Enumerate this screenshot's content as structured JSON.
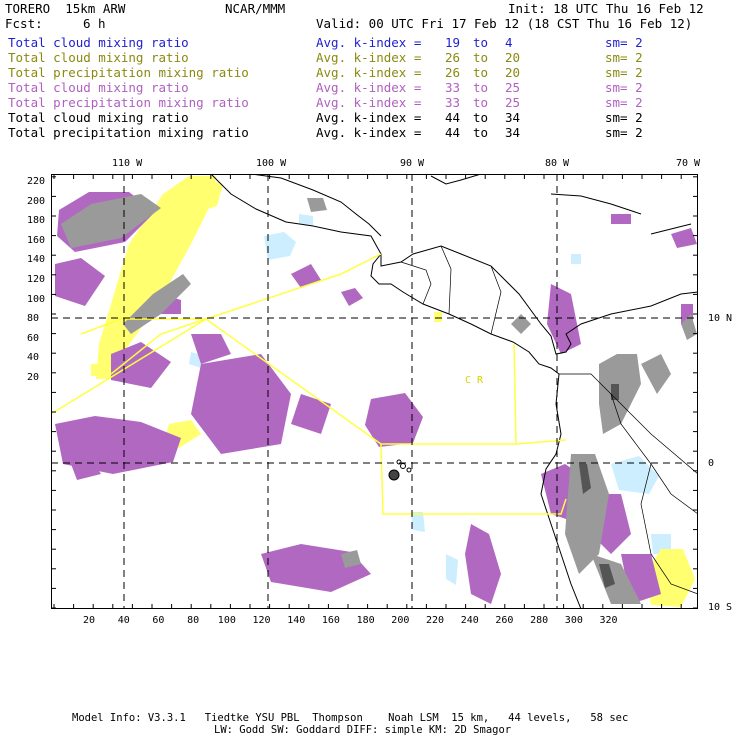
{
  "header": {
    "model": "TORERO  15km ARW",
    "org": "NCAR/MMM",
    "init": "Init: 18 UTC Thu 16 Feb 12",
    "fcst_label": "Fcst:",
    "fcst_value": "6 h",
    "valid": "Valid: 00 UTC Fri 17 Feb 12 (18 CST Thu 16 Feb 12)"
  },
  "legend": [
    {
      "field": "Total cloud mixing ratio",
      "avg": "Avg. k-index =",
      "k1": "19",
      "to": "to",
      "k2": "4",
      "sm": "sm= 2",
      "color": "#1f1fd0"
    },
    {
      "field": "Total cloud mixing ratio",
      "avg": "Avg. k-index =",
      "k1": "26",
      "to": "to",
      "k2": "20",
      "sm": "sm= 2",
      "color": "#8a8a10"
    },
    {
      "field": "Total precipitation mixing ratio",
      "avg": "Avg. k-index =",
      "k1": "26",
      "to": "to",
      "k2": "20",
      "sm": "sm= 2",
      "color": "#8a8a10"
    },
    {
      "field": "Total cloud mixing ratio",
      "avg": "Avg. k-index =",
      "k1": "33",
      "to": "to",
      "k2": "25",
      "sm": "sm= 2",
      "color": "#b060c0"
    },
    {
      "field": "Total precipitation mixing ratio",
      "avg": "Avg. k-index =",
      "k1": "33",
      "to": "to",
      "k2": "25",
      "sm": "sm= 2",
      "color": "#b060c0"
    },
    {
      "field": "Total cloud mixing ratio",
      "avg": "Avg. k-index =",
      "k1": "44",
      "to": "to",
      "k2": "34",
      "sm": "sm= 2",
      "color": "#000000"
    },
    {
      "field": "Total precipitation mixing ratio",
      "avg": "Avg. k-index =",
      "k1": "44",
      "to": "to",
      "k2": "34",
      "sm": "sm= 2",
      "color": "#000000"
    }
  ],
  "map": {
    "top_lon_labels": [
      "110 W",
      "100 W",
      "90 W",
      "80 W",
      "70 W"
    ],
    "right_lat_labels": [
      "10 N",
      "0",
      "10 S"
    ],
    "left_ticks": [
      "220",
      "200",
      "180",
      "160",
      "140",
      "120",
      "100",
      "80",
      "60",
      "40",
      "20"
    ],
    "bottom_ticks": [
      "20",
      "40",
      "60",
      "80",
      "100",
      "120",
      "140",
      "160",
      "180",
      "200",
      "220",
      "240",
      "260",
      "280",
      "300",
      "320"
    ],
    "region_label": "C R",
    "colors": {
      "purple": "#b068c0",
      "yellow": "#ffff70",
      "light_blue": "#cceeff",
      "gray": "#9a9a9a",
      "dark_gray": "#555555",
      "coast": "#000000",
      "boundary": "#ffff40"
    }
  },
  "footer": {
    "line1": "Model Info: V3.3.1   Tiedtke YSU PBL  Thompson    Noah LSM  15 km,   44 levels,   58 sec",
    "line2": "LW: Godd SW: Goddard DIFF: simple KM: 2D Smagor"
  }
}
